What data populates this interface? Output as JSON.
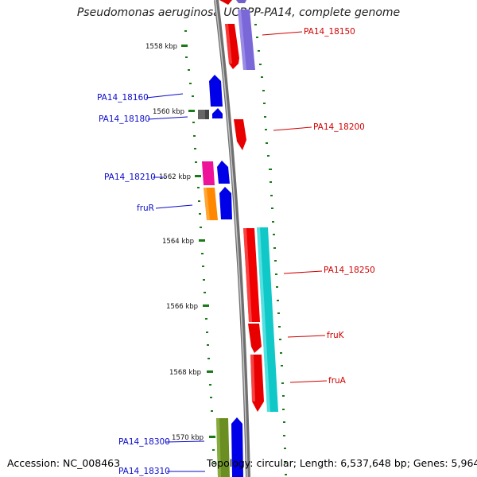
{
  "title": "Pseudomonas aeruginosa UCBPP-PA14, complete genome",
  "accession": "Accession: NC_008463",
  "topology": "Topology: circular; Length: 6,537,648 bp; Genes: 5,964",
  "colors": {
    "forward_label": "#0a0acc",
    "reverse_label": "#d00000",
    "backbone": "#8c8c8c",
    "tick": "#1a7a1a"
  },
  "kbp_markers": [
    {
      "label": "1558 kbp"
    },
    {
      "label": "1560 kbp"
    },
    {
      "label": "1562 kbp"
    },
    {
      "label": "1564 kbp"
    },
    {
      "label": "1566 kbp"
    },
    {
      "label": "1568 kbp"
    },
    {
      "label": "1570 kbp"
    }
  ],
  "gene_labels": [
    {
      "text": "PA14_18150",
      "strand": "reverse"
    },
    {
      "text": "PA14_18160",
      "strand": "forward"
    },
    {
      "text": "PA14_18180",
      "strand": "forward"
    },
    {
      "text": "PA14_18200",
      "strand": "reverse"
    },
    {
      "text": "PA14_18210",
      "strand": "forward"
    },
    {
      "text": "fruR",
      "strand": "forward"
    },
    {
      "text": "PA14_18250",
      "strand": "reverse"
    },
    {
      "text": "fruK",
      "strand": "reverse"
    },
    {
      "text": "fruA",
      "strand": "reverse"
    },
    {
      "text": "PA14_18300",
      "strand": "forward"
    },
    {
      "text": "PA14_18310",
      "strand": "forward"
    }
  ]
}
